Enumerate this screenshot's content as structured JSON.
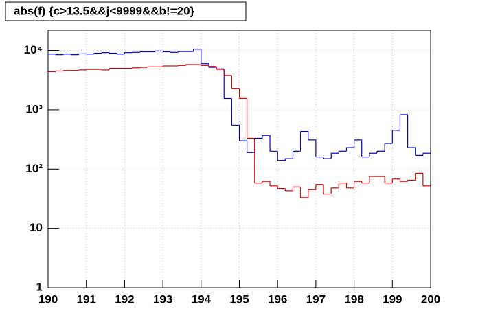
{
  "chart_data": {
    "type": "histogram",
    "title": "abs(f) {c>13.5&&j<9999&&b!=20}",
    "bins": [
      190,
      190.2,
      190.4,
      190.6,
      190.8,
      191,
      191.2,
      191.4,
      191.6,
      191.8,
      192,
      192.2,
      192.4,
      192.6,
      192.8,
      193,
      193.2,
      193.4,
      193.6,
      193.8,
      194,
      194.2,
      194.4,
      194.6,
      194.8,
      195,
      195.2,
      195.4,
      195.6,
      195.8,
      196,
      196.2,
      196.4,
      196.6,
      196.8,
      197,
      197.2,
      197.4,
      197.6,
      197.8,
      198,
      198.2,
      198.4,
      198.6,
      198.8,
      199,
      199.2,
      199.4,
      199.6,
      199.8,
      200
    ],
    "series": [
      {
        "color": "#0000cc",
        "values": [
          8700,
          8500,
          8700,
          8500,
          8800,
          8700,
          9000,
          9200,
          9000,
          8700,
          9200,
          9300,
          9500,
          9500,
          9800,
          9500,
          9300,
          9600,
          9600,
          10500,
          6000,
          5200,
          4900,
          1550,
          550,
          300,
          190,
          330,
          370,
          200,
          140,
          150,
          200,
          430,
          310,
          160,
          150,
          185,
          200,
          230,
          310,
          160,
          185,
          200,
          270,
          450,
          830,
          230,
          170,
          185
        ]
      },
      {
        "color": "#dd0000",
        "values": [
          4400,
          4500,
          4600,
          4600,
          4700,
          4800,
          4800,
          4700,
          5000,
          5000,
          5000,
          5100,
          5200,
          5300,
          5300,
          5500,
          5500,
          5600,
          5800,
          5800,
          5600,
          5400,
          4800,
          3800,
          2300,
          1550,
          330,
          58,
          62,
          52,
          47,
          43,
          50,
          33,
          45,
          55,
          38,
          48,
          58,
          48,
          62,
          58,
          75,
          75,
          58,
          68,
          62,
          65,
          85,
          52
        ]
      }
    ],
    "xlim": [
      190,
      200
    ],
    "xticks": [
      190,
      191,
      192,
      193,
      194,
      195,
      196,
      197,
      198,
      199,
      200
    ],
    "ylim": [
      1,
      22000
    ],
    "log_y": true,
    "yticks": [
      1,
      10,
      {
        "value": 100,
        "label": "10²"
      },
      {
        "value": 1000,
        "label": "10³"
      },
      {
        "value": 10000,
        "label": "10⁴"
      }
    ],
    "grid": true
  }
}
